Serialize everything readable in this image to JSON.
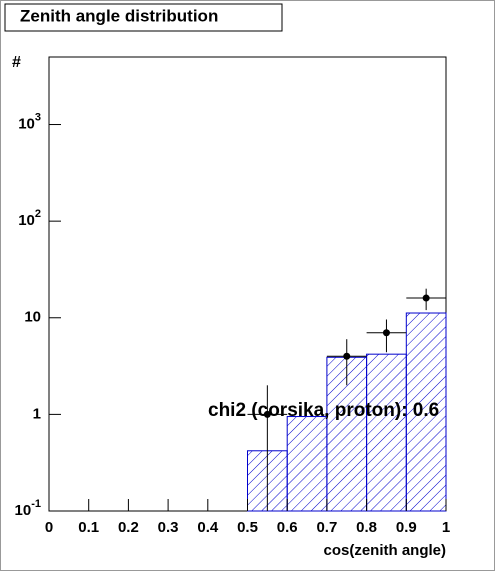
{
  "chart_data": {
    "type": "histogram",
    "title": "Zenith angle distribution",
    "xlabel": "cos(zenith angle)",
    "ylabel": "#",
    "annotation": "chi2 (corsika, proton): 0.6",
    "bins": [
      0,
      0.1,
      0.2,
      0.3,
      0.4,
      0.5,
      0.6,
      0.7,
      0.8,
      0.9,
      1
    ],
    "values": [
      0,
      0,
      0,
      0,
      0,
      0.42,
      0.95,
      3.9,
      4.2,
      11.2
    ],
    "color": "#0000cc",
    "points": {
      "x": [
        0.55,
        0.75,
        0.85,
        0.95
      ],
      "values": [
        1,
        4,
        7,
        16
      ],
      "errors": [
        1,
        2,
        2.6,
        4
      ],
      "color": "#000000"
    },
    "xlim": [
      0,
      1
    ],
    "ylim": [
      0.1,
      5000
    ],
    "log_y": true,
    "xticks": [
      0,
      0.1,
      0.2,
      0.3,
      0.4,
      0.5,
      0.6,
      0.7,
      0.8,
      0.9,
      1
    ],
    "yticks": [
      {
        "value": 0.1,
        "label": "10",
        "label_sup": "-1"
      },
      1,
      10,
      {
        "value": 100,
        "label": "10",
        "label_sup": "2"
      },
      {
        "value": 1000,
        "label": "10",
        "label_sup": "3"
      }
    ]
  }
}
